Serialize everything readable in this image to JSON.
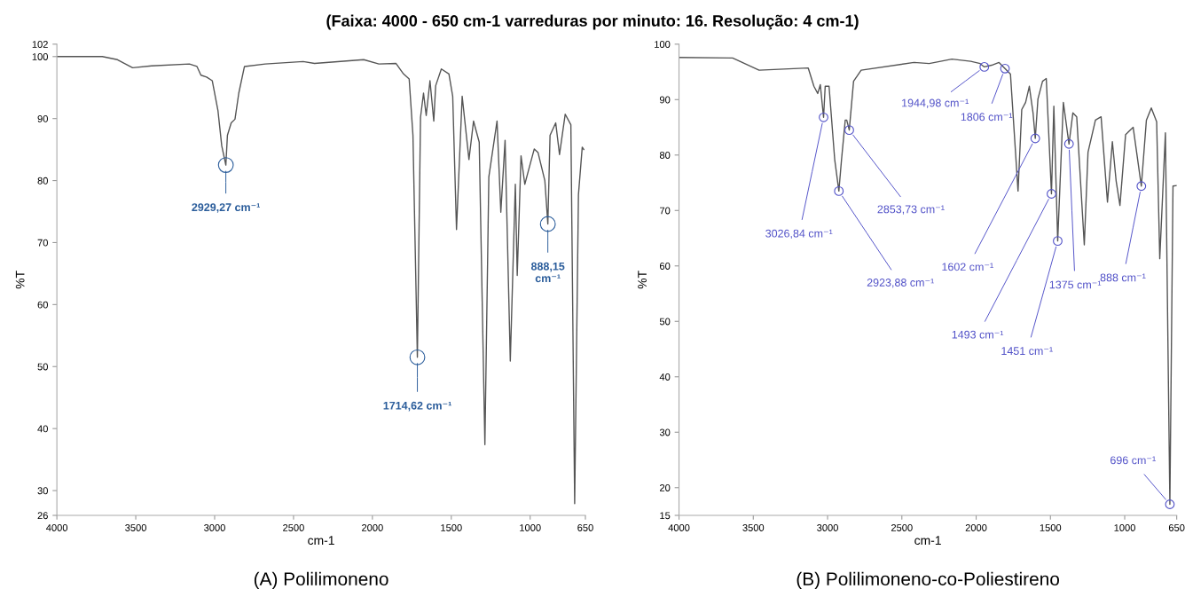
{
  "chart_data": [
    {
      "type": "line",
      "title": "(Faixa: 4000 - 650 cm-1 varreduras por minuto: 16. Resolução: 4 cm-1)",
      "xlabel": "cm-1",
      "ylabel": "%T",
      "x": [
        4000,
        3712,
        3616,
        3520,
        3400,
        3160,
        3112,
        3087,
        3051,
        3015,
        2979,
        2955,
        2929,
        2919,
        2895,
        2871,
        2847,
        2811,
        2679,
        2439,
        2367,
        2055,
        1959,
        1851,
        1803,
        1767,
        1743,
        1715,
        1695,
        1676,
        1659,
        1635,
        1611,
        1599,
        1563,
        1515,
        1491,
        1467,
        1431,
        1388,
        1359,
        1323,
        1287,
        1262,
        1210,
        1186,
        1159,
        1126,
        1094,
        1082,
        1058,
        1034,
        1010,
        974,
        950,
        907,
        888,
        874,
        838,
        814,
        778,
        742,
        718,
        694,
        670,
        660
      ],
      "series": [
        {
          "color": "#555555",
          "values": [
            100,
            100,
            99.5,
            98.2,
            98.5,
            98.8,
            98.4,
            97,
            96.7,
            96.1,
            91.3,
            85.6,
            82.5,
            87.3,
            89.3,
            89.9,
            94.1,
            98.4,
            98.8,
            99.2,
            98.9,
            99.5,
            98.8,
            98.9,
            97.2,
            96.4,
            87.3,
            51.5,
            90.2,
            94.1,
            90.5,
            96.1,
            89.6,
            95.3,
            98,
            97.2,
            93.6,
            72.1,
            93.6,
            83.4,
            89.6,
            86.2,
            37.4,
            80.6,
            89.6,
            74.9,
            86.5,
            50.9,
            79.4,
            64.7,
            84,
            79.4,
            81.7,
            85.1,
            84.5,
            80,
            73,
            87.3,
            89.3,
            84.2,
            90.7,
            89,
            27.9,
            77.7,
            85.4,
            85
          ]
        }
      ],
      "xlim": [
        4000,
        650
      ],
      "xticks": [
        4000,
        3500,
        3000,
        2500,
        2000,
        1500,
        1000,
        650
      ],
      "ylim": [
        26,
        102
      ],
      "yticks": [
        26,
        30,
        40,
        50,
        60,
        70,
        80,
        90,
        100,
        102
      ],
      "grid": false,
      "marker": "none",
      "line_style": "solid",
      "annotations": [
        {
          "text": "2929,27 cm⁻¹",
          "x": 2929,
          "y": 82.5
        },
        {
          "text": "1714,62 cm⁻¹",
          "x": 1715,
          "y": 51.5
        },
        {
          "text": "888,15\ncm⁻¹",
          "x": 888,
          "y": 73
        },
        "(A) Polilimoneno"
      ]
    },
    {
      "type": "line",
      "xlabel": "cm-1",
      "ylabel": "%T",
      "x": [
        4000,
        3639,
        3461,
        3130,
        3092,
        3066,
        3049,
        3027,
        3016,
        2990,
        2952,
        2924,
        2906,
        2881,
        2871,
        2854,
        2825,
        2774,
        2418,
        2316,
        2163,
        2036,
        1973,
        1945,
        1896,
        1846,
        1806,
        1769,
        1718,
        1693,
        1667,
        1642,
        1617,
        1602,
        1584,
        1553,
        1528,
        1493,
        1477,
        1451,
        1413,
        1375,
        1349,
        1323,
        1272,
        1247,
        1197,
        1159,
        1116,
        1083,
        1058,
        1032,
        994,
        943,
        888,
        854,
        821,
        785,
        764,
        726,
        696,
        675,
        650
      ],
      "series": [
        {
          "color": "#555555",
          "values": [
            97.6,
            97.5,
            95.3,
            95.7,
            92.4,
            91.1,
            92.7,
            86.8,
            92.4,
            92.4,
            79.2,
            73.5,
            79.2,
            86.3,
            86.3,
            84.5,
            93.3,
            95.3,
            96.7,
            96.5,
            97.3,
            96.9,
            96.5,
            95.9,
            96.2,
            96.7,
            95.6,
            94.6,
            73.5,
            88.2,
            89.5,
            92.4,
            87.6,
            83,
            90.1,
            93.3,
            93.8,
            73,
            88.8,
            64.5,
            89.5,
            82,
            87.6,
            86.9,
            63.8,
            80.5,
            86.3,
            86.9,
            71.5,
            82.4,
            75.4,
            70.9,
            83.7,
            85,
            74.4,
            86.3,
            88.5,
            86,
            61.3,
            84,
            17,
            74.4,
            74.5
          ]
        }
      ],
      "xlim": [
        4000,
        650
      ],
      "xticks": [
        4000,
        3500,
        3000,
        2500,
        2000,
        1500,
        1000,
        650
      ],
      "ylim": [
        15,
        100
      ],
      "yticks": [
        15,
        20,
        30,
        40,
        50,
        60,
        70,
        80,
        90,
        100
      ],
      "grid": false,
      "marker": "none",
      "line_style": "solid",
      "annotations": [
        {
          "text": "3026,84 cm⁻¹",
          "x": 3027,
          "y": 86.8
        },
        {
          "text": "2923,88 cm⁻¹",
          "x": 2924,
          "y": 73.5
        },
        {
          "text": "2853,73 cm⁻¹",
          "x": 2854,
          "y": 84.5
        },
        {
          "text": "1944,98 cm⁻¹",
          "x": 1945,
          "y": 95.9
        },
        {
          "text": "1806 cm⁻¹",
          "x": 1806,
          "y": 95.6
        },
        {
          "text": "1602 cm⁻¹",
          "x": 1602,
          "y": 83
        },
        {
          "text": "1493 cm⁻¹",
          "x": 1493,
          "y": 73
        },
        {
          "text": "1451 cm⁻¹",
          "x": 1451,
          "y": 64.5
        },
        {
          "text": "1375 cm⁻¹",
          "x": 1375,
          "y": 82
        },
        {
          "text": "888 cm⁻¹",
          "x": 888,
          "y": 74.4
        },
        {
          "text": "696 cm⁻¹",
          "x": 696,
          "y": 17
        },
        "(B) Polilimoneno-co-Poliestireno"
      ]
    }
  ]
}
